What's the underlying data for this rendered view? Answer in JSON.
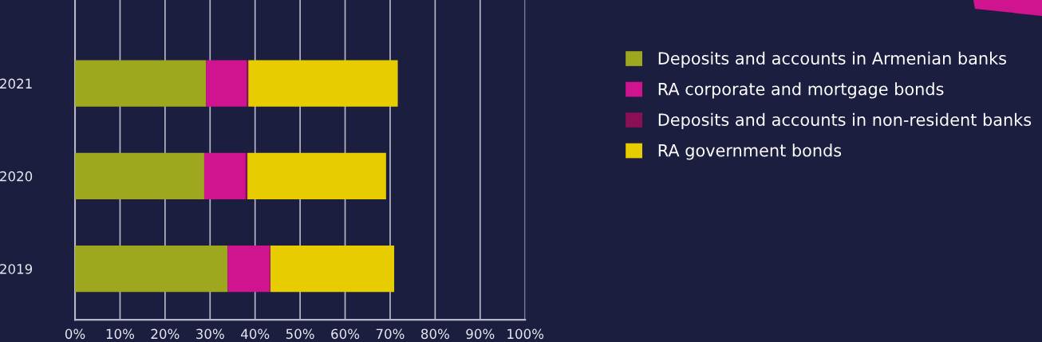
{
  "chart_data": {
    "type": "bar",
    "orientation": "horizontal",
    "stacked": true,
    "categories": [
      "2021",
      "2020",
      "2019"
    ],
    "series": [
      {
        "name": "Deposits and accounts in Armenian banks",
        "color": "#9ea81e",
        "values": [
          29.1,
          28.7,
          33.9
        ]
      },
      {
        "name": "RA corporate and mortgage bonds",
        "color": "#d0138e",
        "values": [
          9.1,
          9.2,
          9.4
        ]
      },
      {
        "name": "Deposits and accounts in non-resident banks",
        "color": "#8a0f55",
        "values": [
          0.3,
          0.4,
          0.1
        ]
      },
      {
        "name": "RA government bonds",
        "color": "#e6cc00",
        "values": [
          33.2,
          30.8,
          27.5
        ]
      }
    ],
    "xlim": [
      0,
      100
    ],
    "xticks": [
      {
        "value": 0,
        "label": "0%"
      },
      {
        "value": 10,
        "label": "10%"
      },
      {
        "value": 20,
        "label": "20%"
      },
      {
        "value": 30,
        "label": "30%"
      },
      {
        "value": 40,
        "label": "40%"
      },
      {
        "value": 50,
        "label": "50%"
      },
      {
        "value": 60,
        "label": "60%"
      },
      {
        "value": 70,
        "label": "70%"
      },
      {
        "value": 80,
        "label": "80%"
      },
      {
        "value": 90,
        "label": "90%"
      },
      {
        "value": 100,
        "label": "100%"
      }
    ],
    "grid": "x",
    "legend": "right"
  }
}
